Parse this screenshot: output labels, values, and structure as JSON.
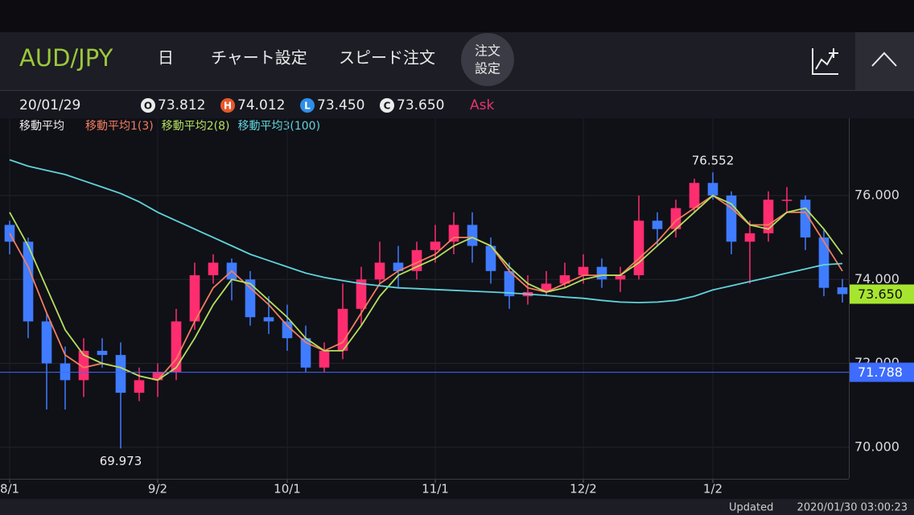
{
  "header": {
    "symbol": "AUD/JPY",
    "period": "日",
    "menu": [
      "チャート設定",
      "スピード注文"
    ],
    "order_button": [
      "注文",
      "設定"
    ]
  },
  "info": {
    "date": "20/01/29",
    "open_label": "O",
    "open": "73.812",
    "high_label": "H",
    "high": "74.012",
    "low_label": "L",
    "low": "73.450",
    "close_label": "C",
    "close": "73.650",
    "side": "Ask"
  },
  "indicator_title": "移動平均",
  "chart_data": {
    "type": "candlestick",
    "categories": [
      "8/1",
      null,
      null,
      null,
      null,
      null,
      null,
      null,
      "9/2",
      null,
      null,
      null,
      null,
      null,
      null,
      "10/1",
      null,
      null,
      null,
      null,
      null,
      null,
      null,
      "11/1",
      null,
      null,
      null,
      null,
      null,
      null,
      null,
      "12/2",
      null,
      null,
      null,
      null,
      null,
      null,
      "1/2",
      null,
      null,
      null,
      null,
      null,
      null,
      null
    ],
    "open": [
      75.3,
      74.9,
      73.0,
      72.0,
      71.6,
      72.3,
      72.2,
      71.3,
      71.6,
      71.8,
      73.0,
      74.1,
      74.4,
      74.0,
      73.1,
      73.0,
      72.6,
      71.9,
      72.3,
      73.3,
      74.0,
      74.4,
      74.2,
      74.7,
      74.9,
      75.3,
      74.8,
      74.2,
      73.6,
      73.7,
      73.9,
      74.1,
      74.3,
      74.0,
      74.1,
      75.4,
      75.2,
      75.7,
      76.3,
      76.0,
      74.9,
      75.1,
      75.9,
      75.9,
      75.0,
      73.812
    ],
    "high": [
      75.4,
      75.0,
      73.2,
      72.4,
      72.6,
      72.6,
      72.5,
      71.9,
      72.0,
      73.3,
      74.4,
      74.6,
      74.5,
      74.2,
      73.6,
      73.4,
      72.9,
      72.5,
      73.9,
      74.3,
      74.9,
      74.8,
      74.9,
      75.3,
      75.6,
      75.6,
      75.0,
      74.4,
      74.1,
      74.2,
      74.4,
      74.6,
      74.5,
      74.3,
      76.0,
      75.6,
      75.9,
      76.4,
      76.552,
      76.1,
      75.4,
      76.1,
      76.2,
      76.0,
      75.2,
      74.012
    ],
    "low": [
      74.6,
      72.6,
      70.9,
      70.9,
      71.2,
      71.9,
      69.973,
      71.1,
      71.2,
      71.6,
      72.8,
      73.9,
      73.5,
      72.9,
      72.7,
      72.3,
      71.8,
      71.8,
      72.1,
      72.9,
      73.9,
      73.8,
      74.0,
      74.4,
      74.6,
      74.4,
      73.9,
      73.3,
      73.4,
      73.6,
      73.8,
      73.9,
      73.8,
      73.7,
      74.0,
      74.8,
      75.0,
      75.6,
      75.9,
      74.6,
      73.9,
      74.9,
      75.6,
      74.7,
      73.6,
      73.45
    ],
    "close": [
      74.9,
      73.0,
      72.0,
      71.6,
      72.3,
      72.2,
      71.3,
      71.6,
      71.8,
      73.0,
      74.1,
      74.4,
      74.0,
      73.1,
      73.0,
      72.6,
      71.9,
      72.3,
      73.3,
      74.0,
      74.4,
      74.2,
      74.7,
      74.9,
      75.3,
      74.8,
      74.2,
      73.6,
      73.7,
      73.9,
      74.1,
      74.3,
      74.0,
      74.1,
      75.4,
      75.2,
      75.7,
      76.3,
      76.0,
      74.9,
      75.1,
      75.9,
      75.9,
      75.0,
      73.8,
      73.65
    ],
    "up_color": "#ff2d6f",
    "down_color": "#3f7cff",
    "series": [
      {
        "name": "移動平均1(3)",
        "color": "#f27d5e",
        "values": [
          75.1,
          74.3,
          73.2,
          72.2,
          71.9,
          72.0,
          71.9,
          71.7,
          71.6,
          72.1,
          73.0,
          73.8,
          74.2,
          73.8,
          73.4,
          72.9,
          72.5,
          72.3,
          72.5,
          73.2,
          73.9,
          74.2,
          74.4,
          74.6,
          75.0,
          75.0,
          74.8,
          74.2,
          73.8,
          73.7,
          73.9,
          74.1,
          74.1,
          74.1,
          74.5,
          74.9,
          75.4,
          75.7,
          76.0,
          75.7,
          75.3,
          75.3,
          75.6,
          75.6,
          74.9,
          74.2
        ]
      },
      {
        "name": "移動平均2(8)",
        "color": "#b4e05c",
        "values": [
          75.6,
          74.8,
          73.8,
          72.8,
          72.2,
          72.0,
          71.9,
          71.7,
          71.6,
          71.9,
          72.6,
          73.4,
          74.0,
          73.9,
          73.5,
          73.1,
          72.6,
          72.3,
          72.3,
          72.9,
          73.6,
          74.1,
          74.3,
          74.5,
          74.8,
          75.0,
          74.8,
          74.3,
          73.9,
          73.7,
          73.8,
          74.0,
          74.1,
          74.1,
          74.4,
          74.8,
          75.2,
          75.6,
          76.0,
          75.8,
          75.3,
          75.2,
          75.6,
          75.7,
          75.2,
          74.6
        ]
      },
      {
        "name": "移動平均3(100)",
        "color": "#5fd4da",
        "values": [
          76.85,
          76.7,
          76.6,
          76.5,
          76.35,
          76.2,
          76.05,
          75.85,
          75.6,
          75.4,
          75.2,
          75.0,
          74.8,
          74.6,
          74.45,
          74.3,
          74.15,
          74.05,
          73.97,
          73.9,
          73.85,
          73.8,
          73.78,
          73.76,
          73.74,
          73.72,
          73.7,
          73.68,
          73.65,
          73.62,
          73.58,
          73.55,
          73.5,
          73.46,
          73.45,
          73.46,
          73.5,
          73.6,
          73.75,
          73.85,
          73.95,
          74.05,
          74.15,
          74.25,
          74.35,
          74.38
        ]
      }
    ],
    "ylim": [
      69.25,
      77.84
    ],
    "yticks": [
      {
        "value": 70,
        "label": "70.000"
      },
      {
        "value": 72,
        "label": "72.000"
      },
      {
        "value": 74,
        "label": "74.000"
      },
      {
        "value": 76,
        "label": "76.000"
      }
    ],
    "grid": true,
    "annotations": [
      {
        "value": 76.552,
        "label": "76.552",
        "at": "high"
      },
      {
        "value": 69.973,
        "label": "69.973",
        "at": "low"
      }
    ],
    "price_lines": [
      {
        "value": 71.788,
        "label": "71.788",
        "color": "#3d6cff"
      }
    ],
    "last_price": {
      "value": 73.65,
      "label": "73.650",
      "color": "#a6e52f"
    }
  },
  "footer": {
    "updated_label": "Updated",
    "updated_time": "2020/01/30 03:00:23"
  }
}
